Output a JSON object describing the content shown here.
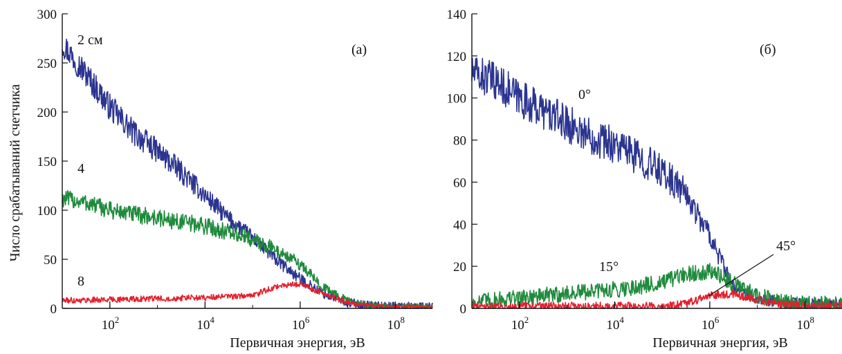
{
  "chart_data": [
    {
      "type": "line",
      "panel_label": "(а)",
      "xlabel": "Первичная энергия, эВ",
      "ylabel": "Число срабатываний счетчика",
      "x_scale": "log",
      "xlim": [
        10,
        600000000
      ],
      "ylim": [
        0,
        300
      ],
      "y_ticks": [
        0,
        50,
        100,
        150,
        200,
        250,
        300
      ],
      "x_ticks": [
        {
          "base": "10",
          "exp": "2",
          "value": 100
        },
        {
          "base": "10",
          "exp": "4",
          "value": 10000
        },
        {
          "base": "10",
          "exp": "6",
          "value": 1000000
        },
        {
          "base": "10",
          "exp": "8",
          "value": 100000000
        }
      ],
      "series": [
        {
          "name": "2 см",
          "color": "#2b3590",
          "noise": 14,
          "x": [
            10,
            30,
            100,
            300,
            1000,
            3000,
            10000,
            30000,
            100000,
            300000,
            1000000,
            3000000,
            10000000,
            30000000,
            100000000,
            600000000
          ],
          "y": [
            270,
            240,
            205,
            180,
            160,
            140,
            115,
            92,
            72,
            50,
            30,
            15,
            6,
            3,
            2,
            2
          ]
        },
        {
          "name": "4",
          "color": "#1f8a3c",
          "noise": 9,
          "x": [
            10,
            30,
            100,
            300,
            1000,
            3000,
            10000,
            30000,
            100000,
            300000,
            1000000,
            3000000,
            10000000,
            30000000,
            100000000,
            600000000
          ],
          "y": [
            112,
            108,
            100,
            96,
            92,
            88,
            84,
            78,
            70,
            60,
            45,
            22,
            8,
            3,
            2,
            2
          ]
        },
        {
          "name": "8",
          "color": "#e3202d",
          "noise": 3,
          "x": [
            10,
            100,
            1000,
            10000,
            100000,
            300000,
            1000000,
            3000000,
            10000000,
            30000000,
            100000000,
            600000000
          ],
          "y": [
            8,
            9,
            10,
            11,
            13,
            22,
            25,
            15,
            6,
            3,
            2,
            2
          ]
        }
      ]
    },
    {
      "type": "line",
      "panel_label": "(б)",
      "xlabel": "Первичная энергия, эВ",
      "ylabel": "",
      "x_scale": "log",
      "xlim": [
        10,
        600000000
      ],
      "ylim": [
        0,
        140
      ],
      "y_ticks": [
        0,
        20,
        40,
        60,
        80,
        100,
        120,
        140
      ],
      "x_ticks": [
        {
          "base": "10",
          "exp": "2",
          "value": 100
        },
        {
          "base": "10",
          "exp": "4",
          "value": 10000
        },
        {
          "base": "10",
          "exp": "6",
          "value": 1000000
        },
        {
          "base": "10",
          "exp": "8",
          "value": 100000000
        }
      ],
      "series": [
        {
          "name": "0°",
          "color": "#2b3590",
          "noise": 9,
          "x": [
            10,
            30,
            100,
            300,
            1000,
            3000,
            10000,
            30000,
            100000,
            300000,
            1000000,
            3000000,
            10000000,
            30000000,
            100000000,
            600000000
          ],
          "y": [
            112,
            108,
            100,
            94,
            88,
            82,
            78,
            72,
            65,
            55,
            35,
            10,
            5,
            3,
            2,
            2
          ]
        },
        {
          "name": "15°",
          "color": "#1f8a3c",
          "noise": 4,
          "x": [
            10,
            100,
            1000,
            10000,
            100000,
            300000,
            1000000,
            3000000,
            10000000,
            30000000,
            100000000,
            600000000
          ],
          "y": [
            3,
            5,
            7,
            9,
            12,
            16,
            18,
            12,
            6,
            3,
            2,
            2
          ]
        },
        {
          "name": "45°",
          "color": "#e3202d",
          "noise": 2,
          "x": [
            10,
            100,
            1000,
            10000,
            100000,
            300000,
            1000000,
            3000000,
            10000000,
            30000000,
            100000000,
            600000000
          ],
          "y": [
            1,
            1,
            1,
            1,
            1,
            2,
            6,
            7,
            4,
            2,
            1,
            1
          ]
        }
      ]
    }
  ]
}
